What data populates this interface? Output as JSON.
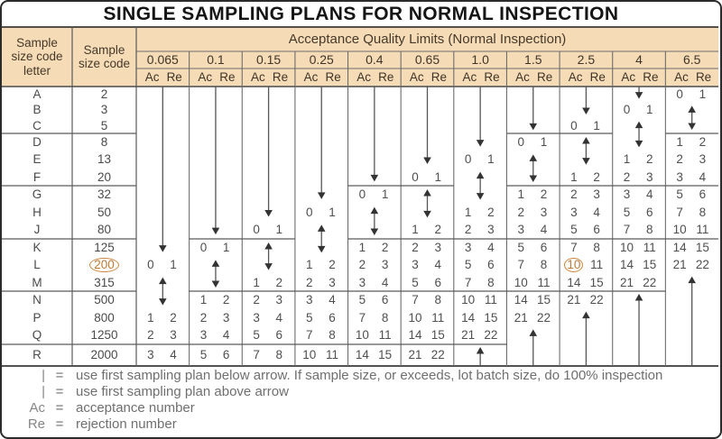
{
  "title": "SINGLE SAMPLING PLANS FOR NORMAL INSPECTION",
  "header": {
    "col1_lines": [
      "Sample",
      "size code",
      "letter"
    ],
    "col2_lines": [
      "Sample",
      "size code"
    ],
    "aql_title": "Acceptance Quality Limits (Normal Inspection)",
    "ac_label": "Ac",
    "re_label": "Re",
    "aql_values": [
      "0.065",
      "0.1",
      "0.15",
      "0.25",
      "0.4",
      "0.65",
      "1.0",
      "1.5",
      "2.5",
      "4",
      "6.5"
    ]
  },
  "rows": [
    {
      "letter": "A",
      "size": "2",
      "circled": false
    },
    {
      "letter": "B",
      "size": "3",
      "circled": false
    },
    {
      "letter": "C",
      "size": "5",
      "circled": false
    },
    {
      "letter": "D",
      "size": "8",
      "circled": false
    },
    {
      "letter": "E",
      "size": "13",
      "circled": false
    },
    {
      "letter": "F",
      "size": "20",
      "circled": false
    },
    {
      "letter": "G",
      "size": "32",
      "circled": false
    },
    {
      "letter": "H",
      "size": "50",
      "circled": false
    },
    {
      "letter": "J",
      "size": "80",
      "circled": false
    },
    {
      "letter": "K",
      "size": "125",
      "circled": false
    },
    {
      "letter": "L",
      "size": "200",
      "circled": true
    },
    {
      "letter": "M",
      "size": "315",
      "circled": false
    },
    {
      "letter": "N",
      "size": "500",
      "circled": false
    },
    {
      "letter": "P",
      "size": "800",
      "circled": false
    },
    {
      "letter": "Q",
      "size": "1250",
      "circled": false
    },
    {
      "letter": "R",
      "size": "2000",
      "circled": false
    }
  ],
  "columns": [
    {
      "aql": "0.065",
      "down_arrow_to": "K",
      "double_arrow": [
        "M",
        "N"
      ],
      "up_arrow_from": null,
      "circled_ac_row": null,
      "cells": {
        "L": [
          0,
          1
        ],
        "P": [
          1,
          2
        ],
        "Q": [
          2,
          3
        ],
        "R": [
          3,
          4
        ]
      }
    },
    {
      "aql": "0.1",
      "down_arrow_to": "J",
      "double_arrow": [
        "L",
        "M"
      ],
      "up_arrow_from": null,
      "circled_ac_row": null,
      "cells": {
        "K": [
          0,
          1
        ],
        "N": [
          1,
          2
        ],
        "P": [
          2,
          3
        ],
        "Q": [
          3,
          4
        ],
        "R": [
          5,
          6
        ]
      }
    },
    {
      "aql": "0.15",
      "down_arrow_to": "H",
      "double_arrow": [
        "K",
        "L"
      ],
      "up_arrow_from": null,
      "circled_ac_row": null,
      "cells": {
        "J": [
          0,
          1
        ],
        "M": [
          1,
          2
        ],
        "N": [
          2,
          3
        ],
        "P": [
          3,
          4
        ],
        "Q": [
          5,
          6
        ],
        "R": [
          7,
          8
        ]
      }
    },
    {
      "aql": "0.25",
      "down_arrow_to": "G",
      "double_arrow": [
        "J",
        "K"
      ],
      "up_arrow_from": null,
      "circled_ac_row": null,
      "cells": {
        "H": [
          0,
          1
        ],
        "L": [
          1,
          2
        ],
        "M": [
          2,
          3
        ],
        "N": [
          3,
          4
        ],
        "P": [
          5,
          6
        ],
        "Q": [
          7,
          8
        ],
        "R": [
          10,
          11
        ]
      }
    },
    {
      "aql": "0.4",
      "down_arrow_to": "F",
      "double_arrow": [
        "H",
        "J"
      ],
      "up_arrow_from": null,
      "circled_ac_row": null,
      "cells": {
        "G": [
          0,
          1
        ],
        "K": [
          1,
          2
        ],
        "L": [
          2,
          3
        ],
        "M": [
          3,
          4
        ],
        "N": [
          5,
          6
        ],
        "P": [
          7,
          8
        ],
        "Q": [
          10,
          11
        ],
        "R": [
          14,
          15
        ]
      }
    },
    {
      "aql": "0.65",
      "down_arrow_to": "E",
      "double_arrow": [
        "G",
        "H"
      ],
      "up_arrow_from": null,
      "circled_ac_row": null,
      "cells": {
        "F": [
          0,
          1
        ],
        "J": [
          1,
          2
        ],
        "K": [
          2,
          3
        ],
        "L": [
          3,
          4
        ],
        "M": [
          5,
          6
        ],
        "N": [
          7,
          8
        ],
        "P": [
          10,
          11
        ],
        "Q": [
          14,
          15
        ],
        "R": [
          21,
          22
        ]
      }
    },
    {
      "aql": "1.0",
      "down_arrow_to": "D",
      "double_arrow": [
        "F",
        "G"
      ],
      "up_arrow_from": "R",
      "circled_ac_row": null,
      "cells": {
        "E": [
          0,
          1
        ],
        "H": [
          1,
          2
        ],
        "J": [
          2,
          3
        ],
        "K": [
          3,
          4
        ],
        "L": [
          5,
          6
        ],
        "M": [
          7,
          8
        ],
        "N": [
          10,
          11
        ],
        "P": [
          14,
          15
        ],
        "Q": [
          21,
          22
        ]
      }
    },
    {
      "aql": "1.5",
      "down_arrow_to": "C",
      "double_arrow": [
        "E",
        "F"
      ],
      "up_arrow_from": "Q",
      "circled_ac_row": null,
      "cells": {
        "D": [
          0,
          1
        ],
        "G": [
          1,
          2
        ],
        "H": [
          2,
          3
        ],
        "J": [
          3,
          4
        ],
        "K": [
          5,
          6
        ],
        "L": [
          7,
          8
        ],
        "M": [
          10,
          11
        ],
        "N": [
          14,
          15
        ],
        "P": [
          21,
          22
        ]
      }
    },
    {
      "aql": "2.5",
      "down_arrow_to": "B",
      "double_arrow": [
        "D",
        "E"
      ],
      "up_arrow_from": "P",
      "circled_ac_row": "L",
      "cells": {
        "C": [
          0,
          1
        ],
        "F": [
          1,
          2
        ],
        "G": [
          2,
          3
        ],
        "H": [
          3,
          4
        ],
        "J": [
          5,
          6
        ],
        "K": [
          7,
          8
        ],
        "L": [
          10,
          11
        ],
        "M": [
          14,
          15
        ],
        "N": [
          21,
          22
        ]
      }
    },
    {
      "aql": "4",
      "down_arrow_to": "A",
      "double_arrow": [
        "C",
        "D"
      ],
      "up_arrow_from": "N",
      "circled_ac_row": null,
      "cells": {
        "B": [
          0,
          1
        ],
        "E": [
          1,
          2
        ],
        "F": [
          2,
          3
        ],
        "G": [
          3,
          4
        ],
        "H": [
          5,
          6
        ],
        "J": [
          7,
          8
        ],
        "K": [
          10,
          11
        ],
        "L": [
          14,
          15
        ],
        "M": [
          21,
          22
        ]
      }
    },
    {
      "aql": "6.5",
      "down_arrow_to": null,
      "double_arrow": [
        "B",
        "C"
      ],
      "up_arrow_from": "M",
      "circled_ac_row": null,
      "cells": {
        "A": [
          0,
          1
        ],
        "D": [
          1,
          2
        ],
        "E": [
          2,
          3
        ],
        "F": [
          3,
          4
        ],
        "G": [
          5,
          6
        ],
        "H": [
          7,
          8
        ],
        "J": [
          10,
          11
        ],
        "K": [
          14,
          15
        ],
        "L": [
          21,
          22
        ]
      }
    }
  ],
  "legend": {
    "items": [
      {
        "sym": "|",
        "symbol_icon": "down-arrow-symbol",
        "eq": "=",
        "label": "use first sampling plan below arrow. If sample size, or exceeds, lot batch size, do 100% inspection"
      },
      {
        "sym": "|",
        "symbol_icon": "up-arrow-symbol",
        "eq": "=",
        "label": "use first sampling plan above arrow"
      },
      {
        "sym": "Ac",
        "symbol_icon": "ac-abbreviation",
        "eq": "=",
        "label": "acceptance number"
      },
      {
        "sym": "Re",
        "symbol_icon": "re-abbreviation",
        "eq": "=",
        "label": "rejection number"
      }
    ]
  },
  "colors": {
    "header_bg": "#f5dcb6",
    "accent_circle": "#cd8740",
    "grid_line": "#6d6d6d",
    "body_text": "#4a4a4a",
    "header_text": "#46392a",
    "title_text": "#151515",
    "legend_text": "#6f6f6f"
  }
}
